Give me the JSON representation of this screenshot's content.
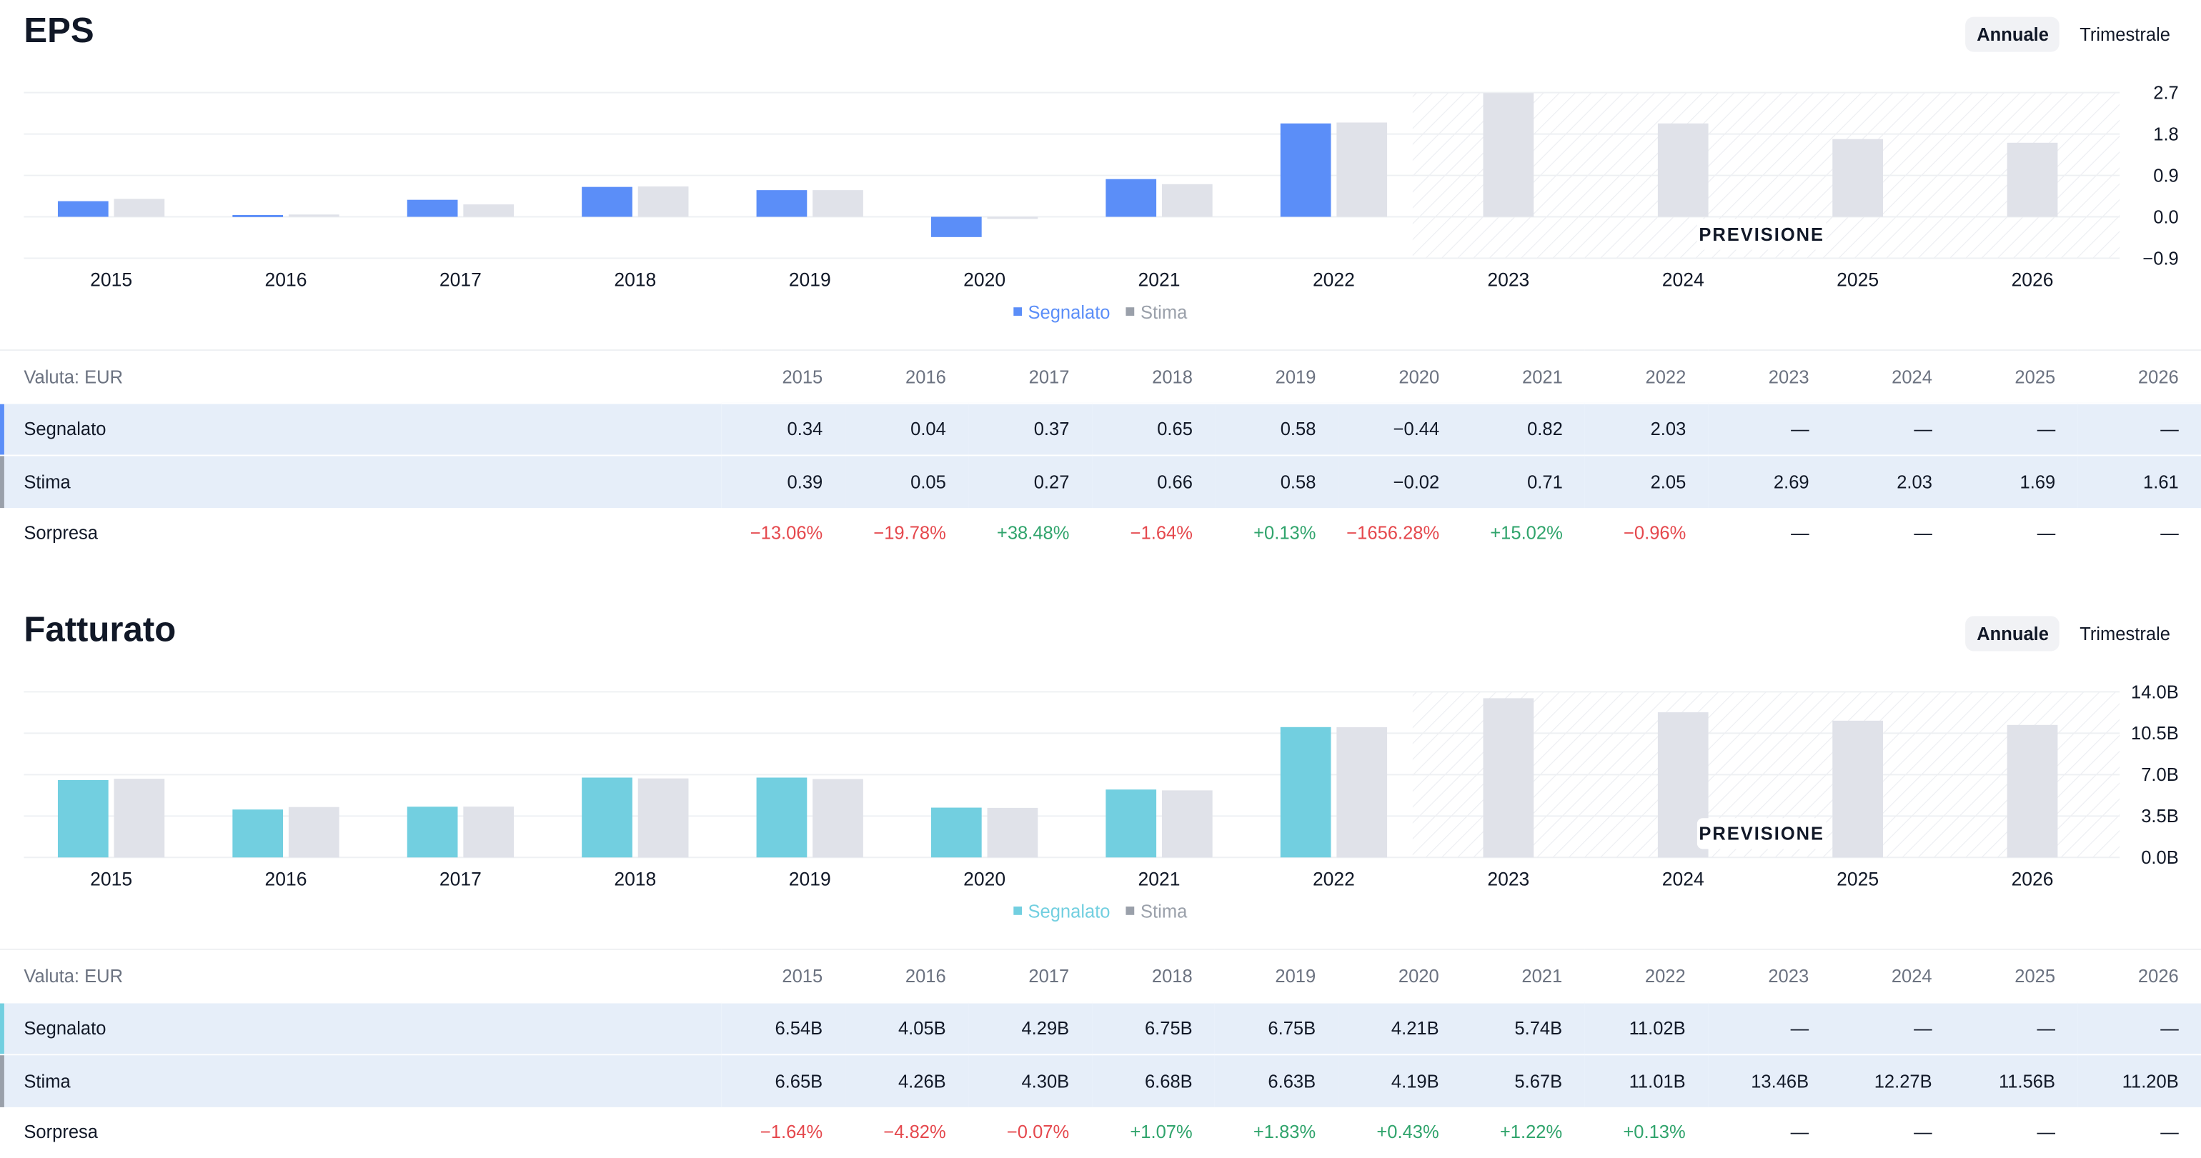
{
  "colors": {
    "eps_reported": "#5b8ef8",
    "revenue_reported": "#72cfe0",
    "estimate": "#e0e2e9",
    "axis_text": "#111827",
    "negative": "#e5484d",
    "positive": "#30a46c",
    "row_highlight": "#e6eef9",
    "estimate_accent": "#9aa0aa"
  },
  "sections": [
    {
      "id": "eps",
      "title": "EPS",
      "toggle": {
        "annual": "Annuale",
        "quarterly": "Trimestrale"
      },
      "forecast_label": "PREVISIONE",
      "legend": {
        "reported": "Segnalato",
        "estimate": "Stima"
      },
      "table": {
        "currency_label": "Valuta: EUR",
        "years": [
          "2015",
          "2016",
          "2017",
          "2018",
          "2019",
          "2020",
          "2021",
          "2022",
          "2023",
          "2024",
          "2025",
          "2026"
        ],
        "rows": [
          {
            "label": "Segnalato",
            "values": [
              "0.34",
              "0.04",
              "0.37",
              "0.65",
              "0.58",
              "−0.44",
              "0.82",
              "2.03",
              "—",
              "—",
              "—",
              "—"
            ]
          },
          {
            "label": "Stima",
            "values": [
              "0.39",
              "0.05",
              "0.27",
              "0.66",
              "0.58",
              "−0.02",
              "0.71",
              "2.05",
              "2.69",
              "2.03",
              "1.69",
              "1.61"
            ]
          },
          {
            "label": "Sorpresa",
            "values": [
              "−13.06%",
              "−19.78%",
              "+38.48%",
              "−1.64%",
              "+0.13%",
              "−1656.28%",
              "+15.02%",
              "−0.96%",
              "—",
              "—",
              "—",
              "—"
            ]
          }
        ]
      }
    },
    {
      "id": "revenue",
      "title": "Fatturato",
      "toggle": {
        "annual": "Annuale",
        "quarterly": "Trimestrale"
      },
      "forecast_label": "PREVISIONE",
      "legend": {
        "reported": "Segnalato",
        "estimate": "Stima"
      },
      "table": {
        "currency_label": "Valuta: EUR",
        "years": [
          "2015",
          "2016",
          "2017",
          "2018",
          "2019",
          "2020",
          "2021",
          "2022",
          "2023",
          "2024",
          "2025",
          "2026"
        ],
        "rows": [
          {
            "label": "Segnalato",
            "values": [
              "6.54B",
              "4.05B",
              "4.29B",
              "6.75B",
              "6.75B",
              "4.21B",
              "5.74B",
              "11.02B",
              "—",
              "—",
              "—",
              "—"
            ]
          },
          {
            "label": "Stima",
            "values": [
              "6.65B",
              "4.26B",
              "4.30B",
              "6.68B",
              "6.63B",
              "4.19B",
              "5.67B",
              "11.01B",
              "13.46B",
              "12.27B",
              "11.56B",
              "11.20B"
            ]
          },
          {
            "label": "Sorpresa",
            "values": [
              "−1.64%",
              "−4.82%",
              "−0.07%",
              "+1.07%",
              "+1.83%",
              "+0.43%",
              "+1.22%",
              "+0.13%",
              "—",
              "—",
              "—",
              "—"
            ]
          }
        ]
      }
    }
  ],
  "chart_data": [
    {
      "type": "bar",
      "title": "EPS",
      "categories": [
        "2015",
        "2016",
        "2017",
        "2018",
        "2019",
        "2020",
        "2021",
        "2022",
        "2023",
        "2024",
        "2025",
        "2026"
      ],
      "series": [
        {
          "name": "Segnalato",
          "values": [
            0.34,
            0.04,
            0.37,
            0.65,
            0.58,
            -0.44,
            0.82,
            2.03,
            null,
            null,
            null,
            null
          ]
        },
        {
          "name": "Stima",
          "values": [
            0.39,
            0.05,
            0.27,
            0.66,
            0.58,
            -0.02,
            0.71,
            2.05,
            2.69,
            2.03,
            1.69,
            1.61
          ]
        }
      ],
      "ylim": [
        -0.9,
        2.7
      ],
      "yticks": [
        2.7,
        1.8,
        0.9,
        0.0,
        -0.9
      ],
      "ytick_labels": [
        "2.7",
        "1.8",
        "0.9",
        "0.0",
        "−0.9"
      ],
      "forecast_from": "2023",
      "xlabel": "",
      "ylabel": ""
    },
    {
      "type": "bar",
      "title": "Fatturato",
      "categories": [
        "2015",
        "2016",
        "2017",
        "2018",
        "2019",
        "2020",
        "2021",
        "2022",
        "2023",
        "2024",
        "2025",
        "2026"
      ],
      "series": [
        {
          "name": "Segnalato",
          "values": [
            6.54,
            4.05,
            4.29,
            6.75,
            6.75,
            4.21,
            5.74,
            11.02,
            null,
            null,
            null,
            null
          ]
        },
        {
          "name": "Stima",
          "values": [
            6.65,
            4.26,
            4.3,
            6.68,
            6.63,
            4.19,
            5.67,
            11.01,
            13.46,
            12.27,
            11.56,
            11.2
          ]
        }
      ],
      "ylim": [
        0,
        14.0
      ],
      "yticks": [
        14.0,
        10.5,
        7.0,
        3.5,
        0.0
      ],
      "ytick_labels": [
        "14.0B",
        "10.5B",
        "7.0B",
        "3.5B",
        "0.0B"
      ],
      "forecast_from": "2023",
      "xlabel": "",
      "ylabel": ""
    }
  ]
}
